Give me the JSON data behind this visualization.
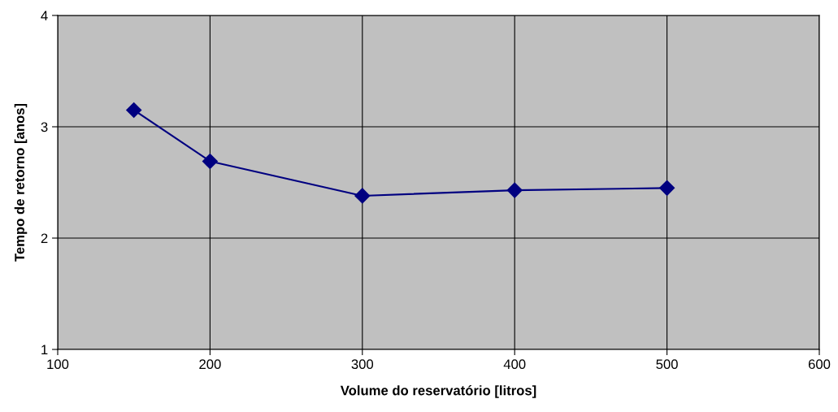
{
  "chart_data": {
    "type": "line",
    "xlabel": "Volume do reservatório [litros]",
    "ylabel": "Tempo de retorno [anos]",
    "x": [
      150,
      200,
      300,
      400,
      500
    ],
    "series": [
      {
        "color": "#000080",
        "values": [
          3.15,
          2.69,
          2.38,
          2.43,
          2.45
        ]
      }
    ],
    "xlim": [
      100,
      600
    ],
    "xticks": [
      100,
      200,
      300,
      400,
      500,
      600
    ],
    "ylim": [
      1,
      4
    ],
    "yticks": [
      1,
      2,
      3,
      4
    ],
    "grid": true,
    "marker": "diamond",
    "line_style": "solid",
    "legend": false
  }
}
